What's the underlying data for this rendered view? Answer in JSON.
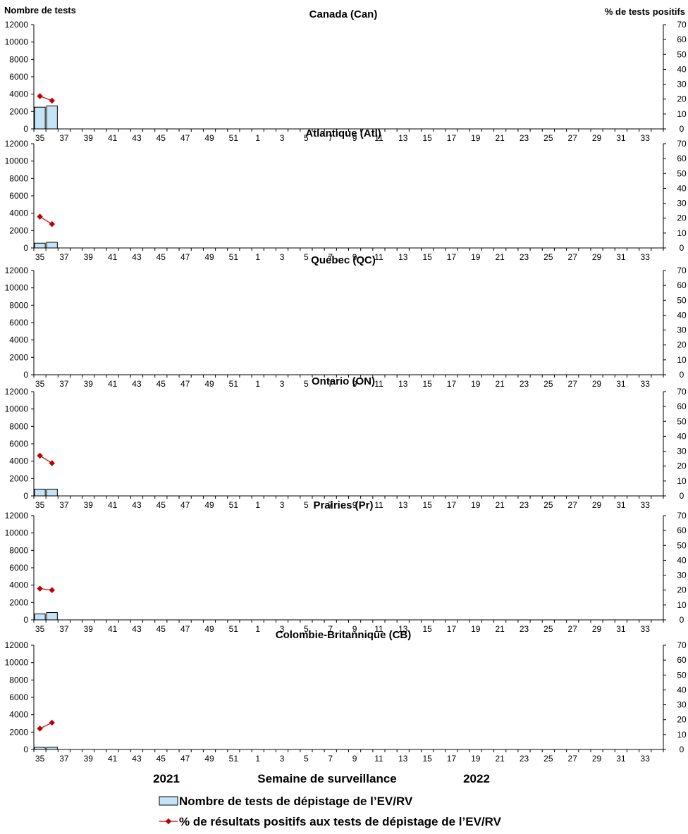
{
  "axis_titles": {
    "left": "Nombre de tests",
    "right": "% de tests positifs"
  },
  "footer": {
    "year_left": "2021",
    "xlabel": "Semaine de surveillance",
    "year_right": "2022"
  },
  "legend": {
    "bars": "Nombre de tests de dépistage de l’EV/RV",
    "line": "% de résultats positifs aux tests de dépistage de l’EV/RV"
  },
  "colors": {
    "bar_fill": "#c6e4f7",
    "bar_stroke": "#000000",
    "line": "#c00000"
  },
  "chart_data": [
    {
      "type": "bar",
      "title": "Canada (Can)",
      "weeks": [
        35,
        36,
        37,
        38,
        39,
        40,
        41,
        42,
        43,
        44,
        45,
        46,
        47,
        48,
        49,
        50,
        51,
        52,
        1,
        2,
        3,
        4,
        5,
        6,
        7,
        8,
        9,
        10,
        11,
        12,
        13,
        14,
        15,
        16,
        17,
        18,
        19,
        20,
        21,
        22,
        23,
        24,
        25,
        26,
        27,
        28,
        29,
        30,
        31,
        32,
        33,
        34
      ],
      "tick_labels": [
        "35",
        "37",
        "39",
        "41",
        "43",
        "45",
        "47",
        "49",
        "51",
        "1",
        "3",
        "5",
        "7",
        "9",
        "11",
        "13",
        "15",
        "17",
        "19",
        "21",
        "23",
        "25",
        "27",
        "29",
        "31",
        "33"
      ],
      "y_ticks": [
        "0",
        "2000",
        "4000",
        "6000",
        "8000",
        "10000",
        "12000"
      ],
      "y2_ticks": [
        "0",
        "10",
        "20",
        "30",
        "40",
        "50",
        "60",
        "70"
      ],
      "ylim": [
        0,
        12000
      ],
      "y2lim": [
        0,
        70
      ],
      "series": [
        {
          "name": "Nombre de tests de dépistage de l’EV/RV",
          "kind": "bar",
          "values": [
            2500,
            2650
          ]
        },
        {
          "name": "% de résultats positifs aux tests de dépistage de l’EV/RV",
          "kind": "line",
          "values": [
            22,
            19
          ]
        }
      ]
    },
    {
      "type": "bar",
      "title": "Atlantique (Atl)",
      "weeks": [
        35,
        36,
        37,
        38,
        39,
        40,
        41,
        42,
        43,
        44,
        45,
        46,
        47,
        48,
        49,
        50,
        51,
        52,
        1,
        2,
        3,
        4,
        5,
        6,
        7,
        8,
        9,
        10,
        11,
        12,
        13,
        14,
        15,
        16,
        17,
        18,
        19,
        20,
        21,
        22,
        23,
        24,
        25,
        26,
        27,
        28,
        29,
        30,
        31,
        32,
        33,
        34
      ],
      "tick_labels": [
        "35",
        "37",
        "39",
        "41",
        "43",
        "45",
        "47",
        "49",
        "51",
        "1",
        "3",
        "5",
        "7",
        "9",
        "11",
        "13",
        "15",
        "17",
        "19",
        "21",
        "23",
        "25",
        "27",
        "29",
        "31",
        "33"
      ],
      "y_ticks": [
        "0",
        "2000",
        "4000",
        "6000",
        "8000",
        "10000",
        "12000"
      ],
      "y2_ticks": [
        "0",
        "10",
        "20",
        "30",
        "40",
        "50",
        "60",
        "70"
      ],
      "ylim": [
        0,
        12000
      ],
      "y2lim": [
        0,
        70
      ],
      "series": [
        {
          "name": "Nombre de tests de dépistage de l’EV/RV",
          "kind": "bar",
          "values": [
            550,
            650
          ]
        },
        {
          "name": "% de résultats positifs aux tests de dépistage de l’EV/RV",
          "kind": "line",
          "values": [
            21,
            16
          ]
        }
      ]
    },
    {
      "type": "bar",
      "title": "Québec (QC)",
      "weeks": [
        35,
        36,
        37,
        38,
        39,
        40,
        41,
        42,
        43,
        44,
        45,
        46,
        47,
        48,
        49,
        50,
        51,
        52,
        1,
        2,
        3,
        4,
        5,
        6,
        7,
        8,
        9,
        10,
        11,
        12,
        13,
        14,
        15,
        16,
        17,
        18,
        19,
        20,
        21,
        22,
        23,
        24,
        25,
        26,
        27,
        28,
        29,
        30,
        31,
        32,
        33,
        34
      ],
      "tick_labels": [
        "35",
        "37",
        "39",
        "41",
        "43",
        "45",
        "47",
        "49",
        "51",
        "1",
        "3",
        "5",
        "7",
        "9",
        "11",
        "13",
        "15",
        "17",
        "19",
        "21",
        "23",
        "25",
        "27",
        "29",
        "31",
        "33"
      ],
      "y_ticks": [
        "0",
        "2000",
        "4000",
        "6000",
        "8000",
        "10000",
        "12000"
      ],
      "y2_ticks": [
        "0",
        "10",
        "20",
        "30",
        "40",
        "50",
        "60",
        "70"
      ],
      "ylim": [
        0,
        12000
      ],
      "y2lim": [
        0,
        70
      ],
      "series": [
        {
          "name": "Nombre de tests de dépistage de l’EV/RV",
          "kind": "bar",
          "values": []
        },
        {
          "name": "% de résultats positifs aux tests de dépistage de l’EV/RV",
          "kind": "line",
          "values": []
        }
      ]
    },
    {
      "type": "bar",
      "title": "Ontario (ON)",
      "weeks": [
        35,
        36,
        37,
        38,
        39,
        40,
        41,
        42,
        43,
        44,
        45,
        46,
        47,
        48,
        49,
        50,
        51,
        52,
        1,
        2,
        3,
        4,
        5,
        6,
        7,
        8,
        9,
        10,
        11,
        12,
        13,
        14,
        15,
        16,
        17,
        18,
        19,
        20,
        21,
        22,
        23,
        24,
        25,
        26,
        27,
        28,
        29,
        30,
        31,
        32,
        33,
        34
      ],
      "tick_labels": [
        "35",
        "37",
        "39",
        "41",
        "43",
        "45",
        "47",
        "49",
        "51",
        "1",
        "3",
        "5",
        "7",
        "9",
        "11",
        "13",
        "15",
        "17",
        "19",
        "21",
        "23",
        "25",
        "27",
        "29",
        "31",
        "33"
      ],
      "y_ticks": [
        "0",
        "2000",
        "4000",
        "6000",
        "8000",
        "10000",
        "12000"
      ],
      "y2_ticks": [
        "0",
        "10",
        "20",
        "30",
        "40",
        "50",
        "60",
        "70"
      ],
      "ylim": [
        0,
        12000
      ],
      "y2lim": [
        0,
        70
      ],
      "series": [
        {
          "name": "Nombre de tests de dépistage de l’EV/RV",
          "kind": "bar",
          "values": [
            780,
            780
          ]
        },
        {
          "name": "% de résultats positifs aux tests de dépistage de l’EV/RV",
          "kind": "line",
          "values": [
            27,
            22
          ]
        }
      ]
    },
    {
      "type": "bar",
      "title": "Prairies (Pr)",
      "weeks": [
        35,
        36,
        37,
        38,
        39,
        40,
        41,
        42,
        43,
        44,
        45,
        46,
        47,
        48,
        49,
        50,
        51,
        52,
        1,
        2,
        3,
        4,
        5,
        6,
        7,
        8,
        9,
        10,
        11,
        12,
        13,
        14,
        15,
        16,
        17,
        18,
        19,
        20,
        21,
        22,
        23,
        24,
        25,
        26,
        27,
        28,
        29,
        30,
        31,
        32,
        33,
        34
      ],
      "tick_labels": [
        "35",
        "37",
        "39",
        "41",
        "43",
        "45",
        "47",
        "49",
        "51",
        "1",
        "3",
        "5",
        "7",
        "9",
        "11",
        "13",
        "15",
        "17",
        "19",
        "21",
        "23",
        "25",
        "27",
        "29",
        "31",
        "33"
      ],
      "y_ticks": [
        "0",
        "2000",
        "4000",
        "6000",
        "8000",
        "10000",
        "12000"
      ],
      "y2_ticks": [
        "0",
        "10",
        "20",
        "30",
        "40",
        "50",
        "60",
        "70"
      ],
      "ylim": [
        0,
        12000
      ],
      "y2lim": [
        0,
        70
      ],
      "series": [
        {
          "name": "Nombre de tests de dépistage de l’EV/RV",
          "kind": "bar",
          "values": [
            680,
            850
          ]
        },
        {
          "name": "% de résultats positifs aux tests de dépistage de l’EV/RV",
          "kind": "line",
          "values": [
            21,
            20
          ]
        }
      ]
    },
    {
      "type": "bar",
      "title": "Colombie-Britannique (CB)",
      "weeks": [
        35,
        36,
        37,
        38,
        39,
        40,
        41,
        42,
        43,
        44,
        45,
        46,
        47,
        48,
        49,
        50,
        51,
        52,
        1,
        2,
        3,
        4,
        5,
        6,
        7,
        8,
        9,
        10,
        11,
        12,
        13,
        14,
        15,
        16,
        17,
        18,
        19,
        20,
        21,
        22,
        23,
        24,
        25,
        26,
        27,
        28,
        29,
        30,
        31,
        32,
        33,
        34
      ],
      "tick_labels": [
        "35",
        "37",
        "39",
        "41",
        "43",
        "45",
        "47",
        "49",
        "51",
        "1",
        "3",
        "5",
        "7",
        "9",
        "11",
        "13",
        "15",
        "17",
        "19",
        "21",
        "23",
        "25",
        "27",
        "29",
        "31",
        "33"
      ],
      "y_ticks": [
        "0",
        "2000",
        "4000",
        "6000",
        "8000",
        "10000",
        "12000"
      ],
      "y2_ticks": [
        "0",
        "10",
        "20",
        "30",
        "40",
        "50",
        "60",
        "70"
      ],
      "ylim": [
        0,
        12000
      ],
      "y2lim": [
        0,
        70
      ],
      "series": [
        {
          "name": "Nombre de tests de dépistage de l’EV/RV",
          "kind": "bar",
          "values": [
            250,
            250
          ]
        },
        {
          "name": "% de résultats positifs aux tests de dépistage de l’EV/RV",
          "kind": "line",
          "values": [
            14,
            18
          ]
        }
      ]
    }
  ]
}
